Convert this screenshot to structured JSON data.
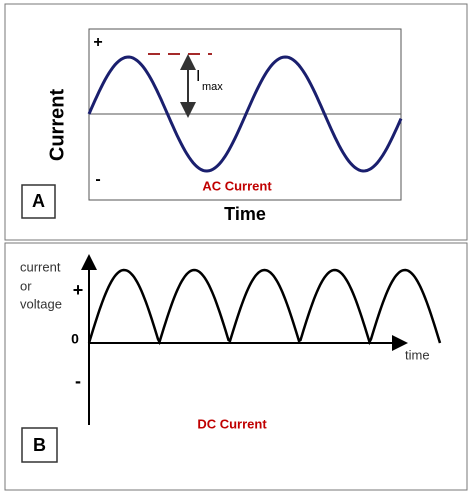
{
  "panel_a": {
    "plus": "+",
    "minus": "-",
    "y_label": "Current",
    "peak_label": "I",
    "peak_subscript": "max",
    "caption": "AC Current",
    "x_label": "Time",
    "badge": "A"
  },
  "panel_b": {
    "y_label_lines": [
      "current",
      "or",
      "voltage"
    ],
    "plus": "+",
    "zero": "0",
    "minus": "-",
    "x_label": "time",
    "caption": "DC Current",
    "badge": "B"
  }
}
